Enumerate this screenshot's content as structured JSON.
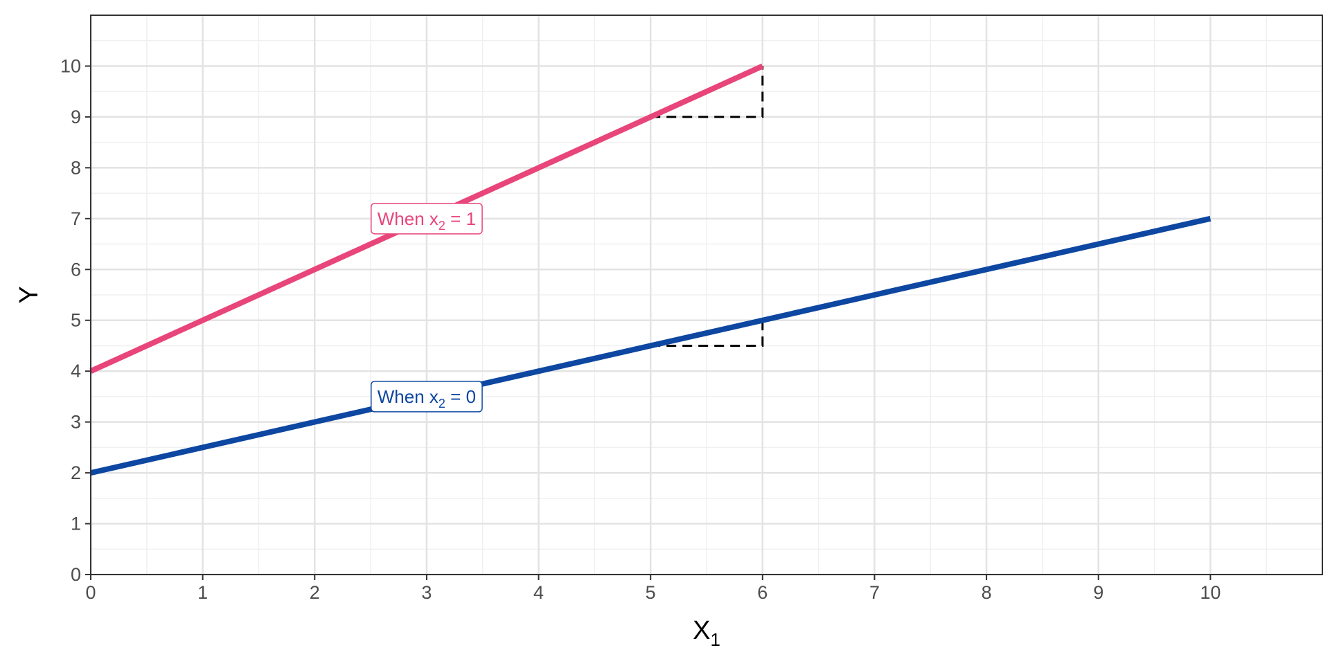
{
  "chart_data": {
    "type": "line",
    "xlabel": "X",
    "xlabel_sub": "1",
    "ylabel": "Y",
    "xlim": [
      0,
      11
    ],
    "ylim": [
      0,
      11
    ],
    "x_ticks": [
      0,
      1,
      2,
      3,
      4,
      5,
      6,
      7,
      8,
      9,
      10
    ],
    "y_ticks": [
      0,
      1,
      2,
      3,
      4,
      5,
      6,
      7,
      8,
      9,
      10
    ],
    "grid": true,
    "series": [
      {
        "key": "x2_1",
        "color": "#E8457A",
        "x": [
          0,
          6
        ],
        "y": [
          4,
          10
        ],
        "label": {
          "prefix": "When x",
          "sub": "2",
          "suffix": " = 1",
          "x": 3,
          "y": 7
        }
      },
      {
        "key": "x2_0",
        "color": "#0D47A1",
        "x": [
          0,
          10
        ],
        "y": [
          2,
          7
        ],
        "label": {
          "prefix": "When x",
          "sub": "2",
          "suffix": " = 0",
          "x": 3,
          "y": 3.5
        }
      }
    ],
    "annotations": [
      {
        "type": "slope-triangle",
        "x": [
          5,
          6,
          6
        ],
        "y": [
          9,
          9,
          10
        ],
        "style": "dashed",
        "color": "#000000"
      },
      {
        "type": "slope-triangle",
        "x": [
          5,
          6,
          6
        ],
        "y": [
          4.5,
          4.5,
          5
        ],
        "style": "dashed",
        "color": "#000000"
      }
    ]
  }
}
